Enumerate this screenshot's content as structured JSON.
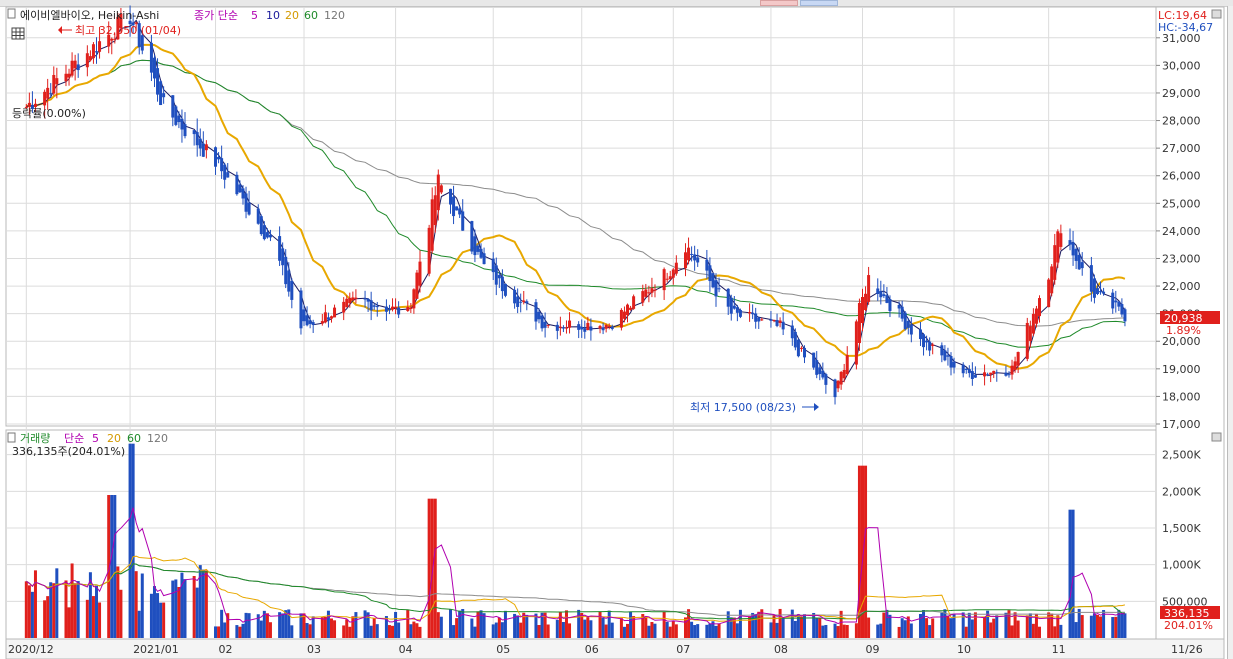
{
  "colors": {
    "up": "#e0201c",
    "down": "#1f4fbf",
    "ma5": "#1b1b60",
    "ma20": "#e8a800",
    "ma60": "#1f8a2a",
    "ma120": "#8c8c8c",
    "vol_ma5": "#b000b0",
    "grid": "#dcdcdc",
    "price_tag_bg": "#e0201c"
  },
  "price_panel": {
    "title": "에이비엘바이오, Heikin-Ashi",
    "ma_label": "종가 단순",
    "ma_periods": [
      "5",
      "10",
      "20",
      "60",
      "120"
    ],
    "lc_label": "LC:19,64",
    "hc_label": "HC:-34,67",
    "high_label": "최고 32,050 (01/04)",
    "low_label": "최저 17,500 (08/23)",
    "rate_label": "등락률(0.00%)",
    "last_price": "20,938",
    "last_change": "1.89%",
    "y_ticks": [
      "31,000",
      "30,000",
      "29,000",
      "28,000",
      "27,000",
      "26,000",
      "25,000",
      "24,000",
      "23,000",
      "22,000",
      "21,000",
      "20,000",
      "19,000",
      "18,000",
      "17,000"
    ],
    "right_fragments": [
      "3",
      "3",
      "2",
      "2",
      "2",
      "2"
    ]
  },
  "volume_panel": {
    "title": "거래량",
    "ma_label": "단순",
    "ma_periods": [
      "5",
      "20",
      "60",
      "120"
    ],
    "value_label": "336,135주(204.01%)",
    "last_volume": "336,135",
    "last_ratio": "204.01%",
    "y_ticks": [
      "2,500K",
      "2,000K",
      "1,500K",
      "1,000K",
      "500,000"
    ]
  },
  "x_axis": {
    "labels": [
      "2020/12",
      "2021/01",
      "02",
      "03",
      "04",
      "05",
      "06",
      "07",
      "08",
      "09",
      "10",
      "11",
      "11/26"
    ]
  },
  "chart_data": {
    "type": "candlestick",
    "title": "에이비엘바이오, Heikin-Ashi",
    "y_range": [
      17000,
      31500
    ],
    "volume_range": [
      0,
      2700000
    ],
    "price_waypoints": [
      {
        "x": "2020-12-01",
        "price": 28500
      },
      {
        "x": "2021-01-04",
        "price": 31800
      },
      {
        "x": "2021-01-15",
        "price": 28500
      },
      {
        "x": "2021-02-01",
        "price": 26500
      },
      {
        "x": "2021-02-20",
        "price": 23500
      },
      {
        "x": "2021-03-01",
        "price": 20500
      },
      {
        "x": "2021-03-20",
        "price": 21500
      },
      {
        "x": "2021-04-05",
        "price": 21000
      },
      {
        "x": "2021-04-15",
        "price": 25800
      },
      {
        "x": "2021-05-01",
        "price": 22500
      },
      {
        "x": "2021-05-20",
        "price": 20600
      },
      {
        "x": "2021-06-10",
        "price": 20600
      },
      {
        "x": "2021-06-30",
        "price": 22600
      },
      {
        "x": "2021-07-05",
        "price": 23500
      },
      {
        "x": "2021-07-20",
        "price": 21000
      },
      {
        "x": "2021-08-05",
        "price": 20500
      },
      {
        "x": "2021-08-23",
        "price": 18000
      },
      {
        "x": "2021-09-03",
        "price": 22300
      },
      {
        "x": "2021-09-20",
        "price": 20000
      },
      {
        "x": "2021-10-05",
        "price": 18800
      },
      {
        "x": "2021-10-20",
        "price": 19000
      },
      {
        "x": "2021-11-01",
        "price": 22500
      },
      {
        "x": "2021-11-05",
        "price": 24200
      },
      {
        "x": "2021-11-15",
        "price": 21800
      },
      {
        "x": "2021-11-26",
        "price": 20938
      }
    ],
    "volume_spikes": [
      {
        "x": "2020-12-29",
        "volume": 1950000
      },
      {
        "x": "2021-01-04",
        "volume": 2650000
      },
      {
        "x": "2021-04-13",
        "volume": 1900000
      },
      {
        "x": "2021-09-01",
        "volume": 2350000
      },
      {
        "x": "2021-11-08",
        "volume": 1750000
      }
    ],
    "last_close": 20938,
    "last_volume": 336135
  }
}
